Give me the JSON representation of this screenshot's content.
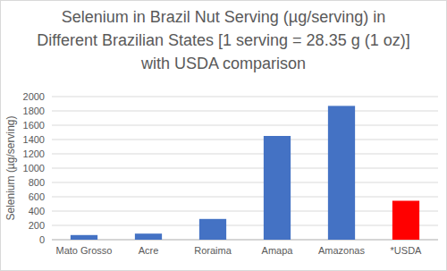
{
  "chart_data": {
    "type": "bar",
    "title": "Selenium in Brazil Nut Serving (µg/serving) in Different Brazilian States [1 serving = 28.35 g (1 oz)] with USDA comparison",
    "y_label": "Selenium (µg/serving)",
    "categories": [
      "Mato Grosso",
      "Acre",
      "Roraima",
      "Amapa",
      "Amazonas",
      "*USDA"
    ],
    "values": [
      65,
      85,
      290,
      1450,
      1870,
      544
    ],
    "colors": [
      "#4472c4",
      "#4472c4",
      "#4472c4",
      "#4472c4",
      "#4472c4",
      "#ff0000"
    ],
    "ylim": [
      0,
      2000
    ],
    "yticks": [
      0,
      200,
      400,
      600,
      800,
      1000,
      1200,
      1400,
      1600,
      1800,
      2000
    ],
    "grid": true
  }
}
